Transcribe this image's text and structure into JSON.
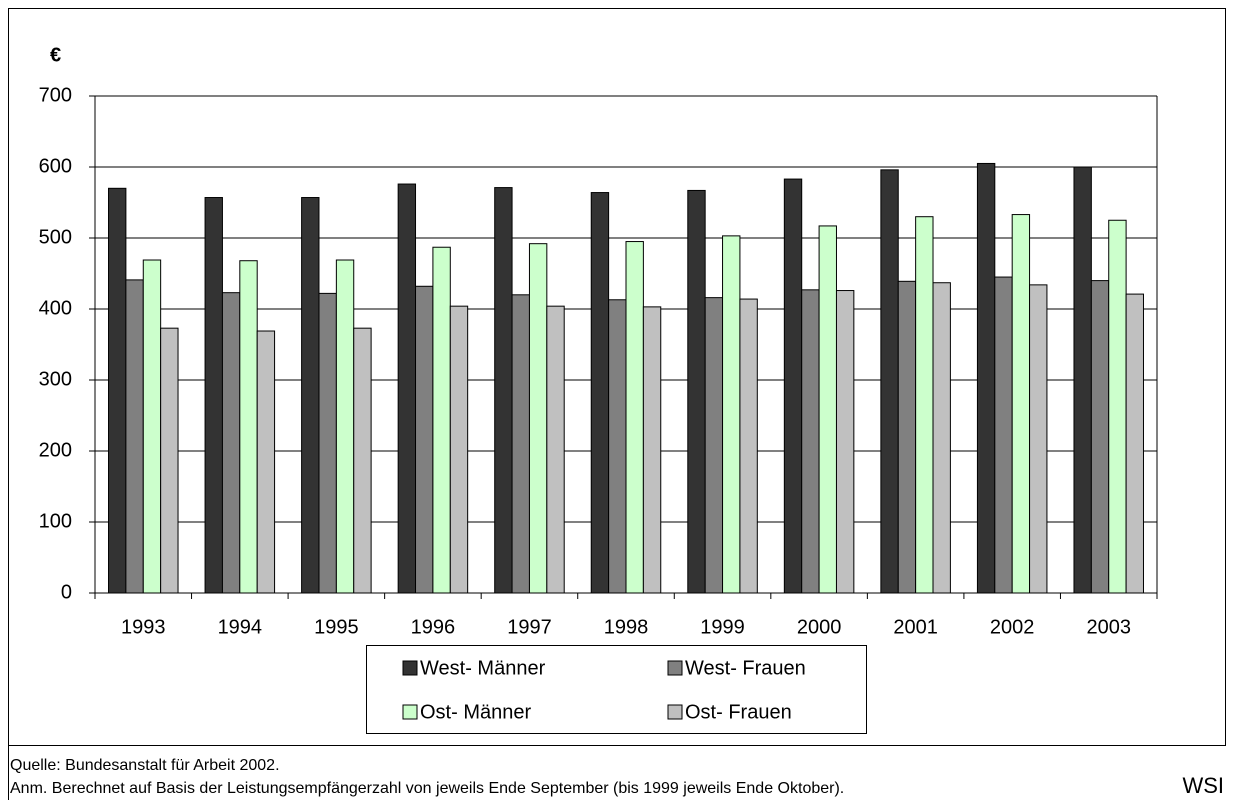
{
  "chart_data": {
    "type": "bar",
    "y_label": "€",
    "categories": [
      "1993",
      "1994",
      "1995",
      "1996",
      "1997",
      "1998",
      "1999",
      "2000",
      "2001",
      "2002",
      "2003"
    ],
    "series": [
      {
        "name": "West- Männer",
        "color": "#333333",
        "values": [
          570,
          557,
          557,
          576,
          571,
          564,
          567,
          583,
          596,
          605,
          600
        ]
      },
      {
        "name": "West- Frauen",
        "color": "#808080",
        "values": [
          441,
          423,
          422,
          432,
          420,
          413,
          416,
          427,
          439,
          445,
          440
        ]
      },
      {
        "name": "Ost- Männer",
        "color": "#ccffcc",
        "values": [
          469,
          468,
          469,
          487,
          492,
          495,
          503,
          517,
          530,
          533,
          525
        ]
      },
      {
        "name": "Ost- Frauen",
        "color": "#c0c0c0",
        "values": [
          373,
          369,
          373,
          404,
          404,
          403,
          414,
          426,
          437,
          434,
          421
        ]
      }
    ],
    "ylim": [
      0,
      700
    ],
    "yticks": [
      0,
      100,
      200,
      300,
      400,
      500,
      600,
      700
    ],
    "grid": true,
    "source": "Quelle: Bundesanstalt für Arbeit 2002.",
    "note": "Anm. Berechnet auf Basis der Leistungsempfängerzahl von jeweils Ende September (bis 1999 jeweils Ende Oktober).",
    "logo": "WSI"
  }
}
